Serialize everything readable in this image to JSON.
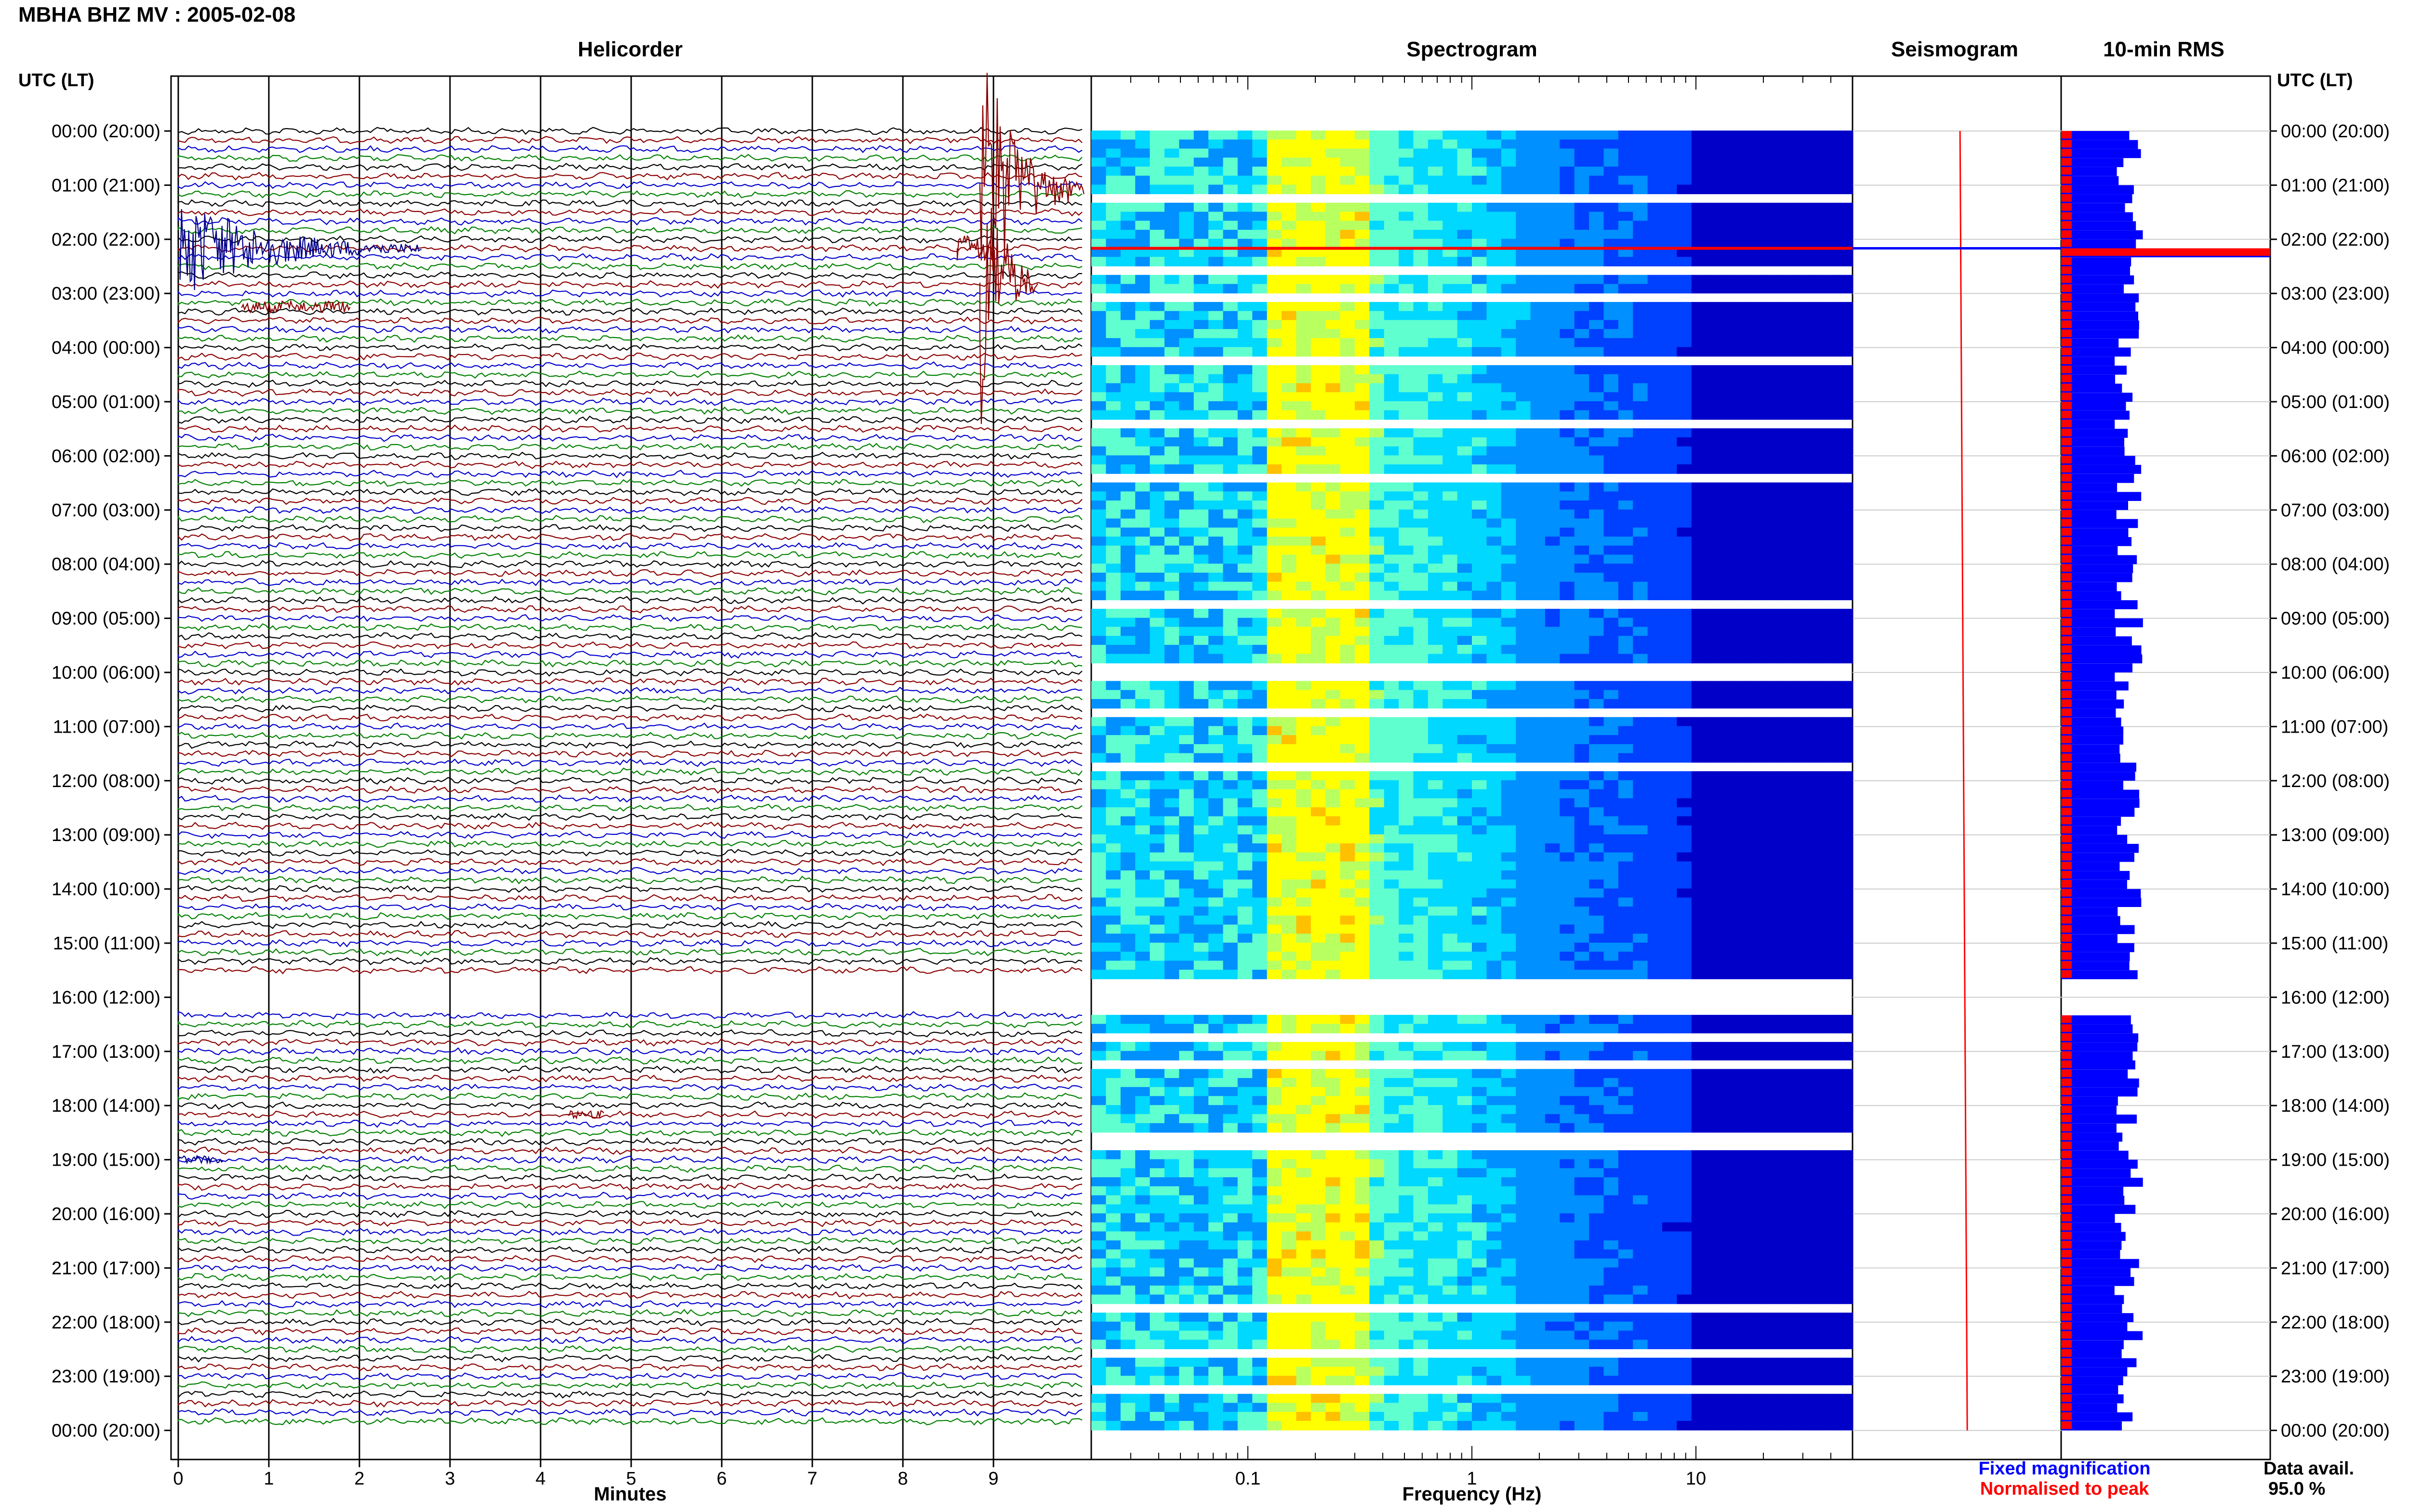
{
  "page": {
    "title": "MBHA BHZ MV : 2005-02-08"
  },
  "chart_data": {
    "type": "helicorder",
    "station": "MBHA",
    "channel": "BHZ",
    "network": "MV",
    "date": "2005-02-08",
    "panels": {
      "helicorder": "Helicorder",
      "spectrogram": "Spectrogram",
      "seismogram": "Seismogram",
      "rms": "10-min RMS"
    },
    "y_axis_title": "UTC (LT)",
    "y_ticks": [
      "00:00 (20:00)",
      "01:00 (21:00)",
      "02:00 (22:00)",
      "03:00 (23:00)",
      "04:00 (00:00)",
      "05:00 (01:00)",
      "06:00 (02:00)",
      "07:00 (03:00)",
      "08:00 (04:00)",
      "09:00 (05:00)",
      "10:00 (06:00)",
      "11:00 (07:00)",
      "12:00 (08:00)",
      "13:00 (09:00)",
      "14:00 (10:00)",
      "15:00 (11:00)",
      "16:00 (12:00)",
      "17:00 (13:00)",
      "18:00 (14:00)",
      "19:00 (15:00)",
      "20:00 (16:00)",
      "21:00 (17:00)",
      "22:00 (18:00)",
      "23:00 (19:00)",
      "00:00 (20:00)"
    ],
    "helicorder": {
      "xlabel": "Minutes",
      "x_ticks": [
        "0",
        "1",
        "2",
        "3",
        "4",
        "5",
        "6",
        "7",
        "8",
        "9"
      ],
      "xlim": [
        0,
        10
      ],
      "trace_colors": [
        "#000000",
        "#8b0000",
        "#0000cd",
        "#008000"
      ],
      "data_gap_hours": [
        15.6,
        16.3
      ]
    },
    "spectrogram": {
      "xlabel": "Frequency (Hz)",
      "x_ticks": [
        "0.1",
        "1",
        "10"
      ],
      "scale": "log",
      "xlim": [
        0.02,
        50
      ]
    },
    "seismogram_legend": [
      {
        "label": "Fixed magnification",
        "color": "#0000ff"
      },
      {
        "label": "Normalised to peak",
        "color": "#ff0000"
      }
    ],
    "rms": {
      "colors": {
        "fixed": "#0000ff",
        "normalised": "#ff0000"
      },
      "rows_per_hour": 6
    },
    "data_availability": {
      "label": "Data avail.",
      "value": "95.0 %"
    }
  }
}
